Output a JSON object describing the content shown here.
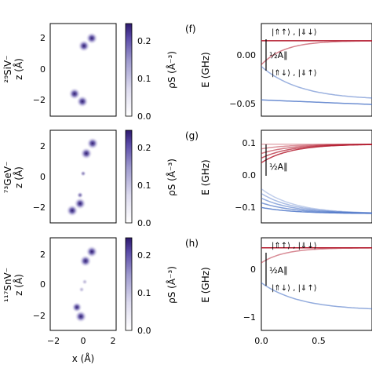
{
  "rows": [
    {
      "isotope_label": "²⁹SiV⁻",
      "panel_label": "(f)",
      "heatmap": {
        "blobs": [
          {
            "x": 0.55,
            "z": 2.05,
            "rho": 0.25
          },
          {
            "x": 0.05,
            "z": 1.55,
            "rho": 0.25
          },
          {
            "x": -0.55,
            "z": -1.55,
            "rho": 0.25
          },
          {
            "x": -0.05,
            "z": -2.05,
            "rho": 0.25
          }
        ]
      },
      "energy": {
        "ylabel": "E (GHz)",
        "yticks": [
          "0.00",
          "−0.05"
        ],
        "ylim": [
          -0.062,
          0.035
        ],
        "bracket_label": "½A∥",
        "state_top": "|⇑↑⟩ , |⇓↓⟩",
        "state_bottom": "|⇑↓⟩ , |⇓↑⟩"
      }
    },
    {
      "isotope_label": "⁷³GeV⁻",
      "panel_label": "(g)",
      "heatmap": {
        "blobs": [
          {
            "x": 0.6,
            "z": 2.15,
            "rho": 0.25
          },
          {
            "x": 0.2,
            "z": 1.5,
            "rho": 0.25
          },
          {
            "x": 0.0,
            "z": 0.2,
            "rho": 0.12
          },
          {
            "x": -0.2,
            "z": -1.2,
            "rho": 0.14
          },
          {
            "x": -0.2,
            "z": -1.75,
            "rho": 0.25
          },
          {
            "x": -0.7,
            "z": -2.2,
            "rho": 0.25
          }
        ]
      },
      "energy": {
        "ylabel": "E (GHz)",
        "yticks": [
          "0.1",
          "0.0",
          "−0.1"
        ],
        "ylim": [
          -0.15,
          0.15
        ],
        "bracket_label": "½A∥"
      }
    },
    {
      "isotope_label": "¹¹⁷SnV⁻",
      "panel_label": "(h)",
      "heatmap": {
        "blobs": [
          {
            "x": 0.55,
            "z": 2.1,
            "rho": 0.25
          },
          {
            "x": 0.15,
            "z": 1.5,
            "rho": 0.25
          },
          {
            "x": 0.1,
            "z": 0.15,
            "rho": 0.06
          },
          {
            "x": -0.1,
            "z": -0.35,
            "rho": 0.06
          },
          {
            "x": -0.4,
            "z": -1.5,
            "rho": 0.22
          },
          {
            "x": -0.15,
            "z": -2.1,
            "rho": 0.25
          }
        ]
      },
      "energy": {
        "ylabel": "E (GHz)",
        "yticks": [
          "0",
          "−1"
        ],
        "ylim": [
          -1.3,
          0.55
        ],
        "bracket_label": "½A∥",
        "state_top": "|⇑↑⟩ , |⇓↓⟩",
        "state_bottom": "|⇑↓⟩ , |⇓↑⟩"
      }
    }
  ],
  "heatmap_axes": {
    "ylabel": "z (Å)",
    "xlabel": "x (Å)",
    "xticks": [
      "−2",
      "0",
      "2"
    ],
    "yticks": [
      "2",
      "0",
      "−2"
    ],
    "xlim": [
      -2.1,
      2.1
    ],
    "zlim": [
      -3.0,
      3.0
    ]
  },
  "colorbar": {
    "label": "ρS (Å⁻³)",
    "ticks": [
      "0.2",
      "0.1",
      "0.0"
    ],
    "range": [
      0.0,
      0.25
    ],
    "color_low": "#ffffff",
    "color_high": "#2e1a6e"
  },
  "energy_xaxis": {
    "xticks": [
      "0.0",
      "0.5"
    ],
    "xlim": [
      0,
      0.95
    ]
  },
  "colors": {
    "red": "#b2182b",
    "blue": "#4a73c7"
  }
}
